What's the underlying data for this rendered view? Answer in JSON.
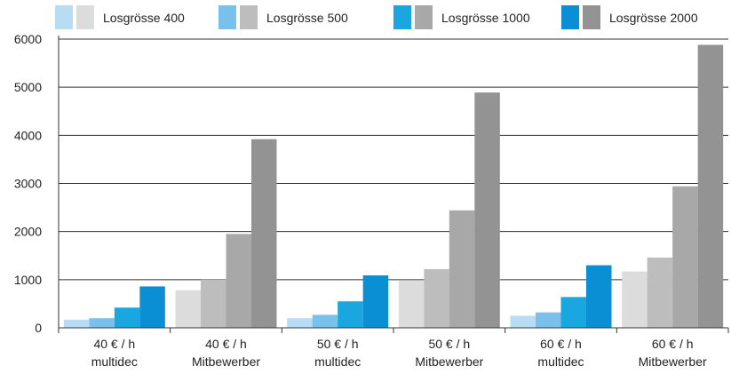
{
  "chart_data": {
    "type": "bar",
    "title": "",
    "xlabel": "",
    "ylabel": "",
    "ylim": [
      0,
      6000
    ],
    "yticks": [
      0,
      1000,
      2000,
      3000,
      4000,
      5000,
      6000
    ],
    "grid": true,
    "legend_position": "top",
    "categories": [
      [
        "40 € / h",
        "multidec"
      ],
      [
        "40 € / h",
        "Mitbewerber"
      ],
      [
        "50 € / h",
        "multidec"
      ],
      [
        "50 € / h",
        "Mitbewerber"
      ],
      [
        "60 € / h",
        "multidec"
      ],
      [
        "60 € / h",
        "Mitbewerber"
      ]
    ],
    "series": [
      {
        "name": "Losgrösse 400",
        "colors": [
          "#b8dcf3",
          "#dcdcdc"
        ],
        "values": [
          170,
          780,
          200,
          980,
          250,
          1170
        ]
      },
      {
        "name": "Losgrösse 500",
        "colors": [
          "#79c1ea",
          "#bdbdbd"
        ],
        "values": [
          200,
          1000,
          270,
          1220,
          320,
          1460
        ]
      },
      {
        "name": "Losgrösse 1000",
        "colors": [
          "#1aa7e0",
          "#a8a8a8"
        ],
        "values": [
          420,
          1950,
          550,
          2440,
          640,
          2940
        ]
      },
      {
        "name": "Losgrösse 2000",
        "colors": [
          "#0a8fd4",
          "#939393"
        ],
        "values": [
          860,
          3920,
          1090,
          4890,
          1300,
          5880
        ]
      }
    ]
  }
}
